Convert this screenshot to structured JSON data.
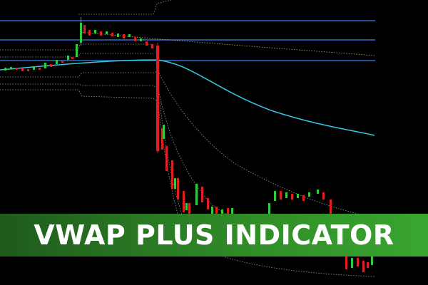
{
  "banner": {
    "title": "VWAP PLUS INDICATOR"
  }
}
